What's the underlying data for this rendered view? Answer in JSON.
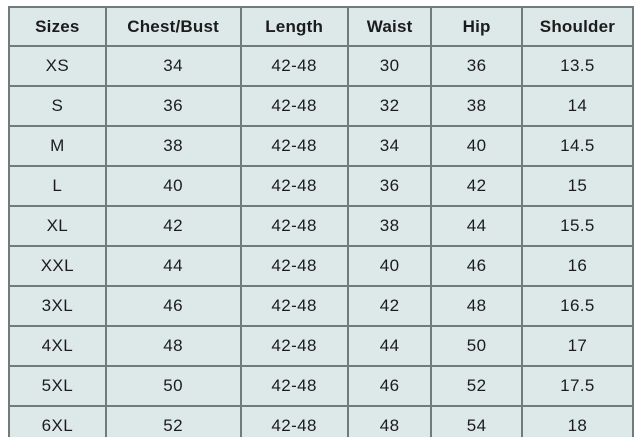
{
  "chart_data": {
    "type": "table",
    "columns": [
      "Sizes",
      "Chest/Bust",
      "Length",
      "Waist",
      "Hip",
      "Shoulder"
    ],
    "rows": [
      [
        "XS",
        "34",
        "42-48",
        "30",
        "36",
        "13.5"
      ],
      [
        "S",
        "36",
        "42-48",
        "32",
        "38",
        "14"
      ],
      [
        "M",
        "38",
        "42-48",
        "34",
        "40",
        "14.5"
      ],
      [
        "L",
        "40",
        "42-48",
        "36",
        "42",
        "15"
      ],
      [
        "XL",
        "42",
        "42-48",
        "38",
        "44",
        "15.5"
      ],
      [
        "XXL",
        "44",
        "42-48",
        "40",
        "46",
        "16"
      ],
      [
        "3XL",
        "46",
        "42-48",
        "42",
        "48",
        "16.5"
      ],
      [
        "4XL",
        "48",
        "42-48",
        "44",
        "50",
        "17"
      ],
      [
        "5XL",
        "50",
        "42-48",
        "46",
        "52",
        "17.5"
      ],
      [
        "6XL",
        "52",
        "42-48",
        "48",
        "54",
        "18"
      ]
    ]
  },
  "colors": {
    "cell_background": "#dde8e8",
    "grid_line": "#717b7b",
    "outer_border": "#5d6767",
    "text": "#1c1c1c",
    "page_background": "#ffffff"
  }
}
